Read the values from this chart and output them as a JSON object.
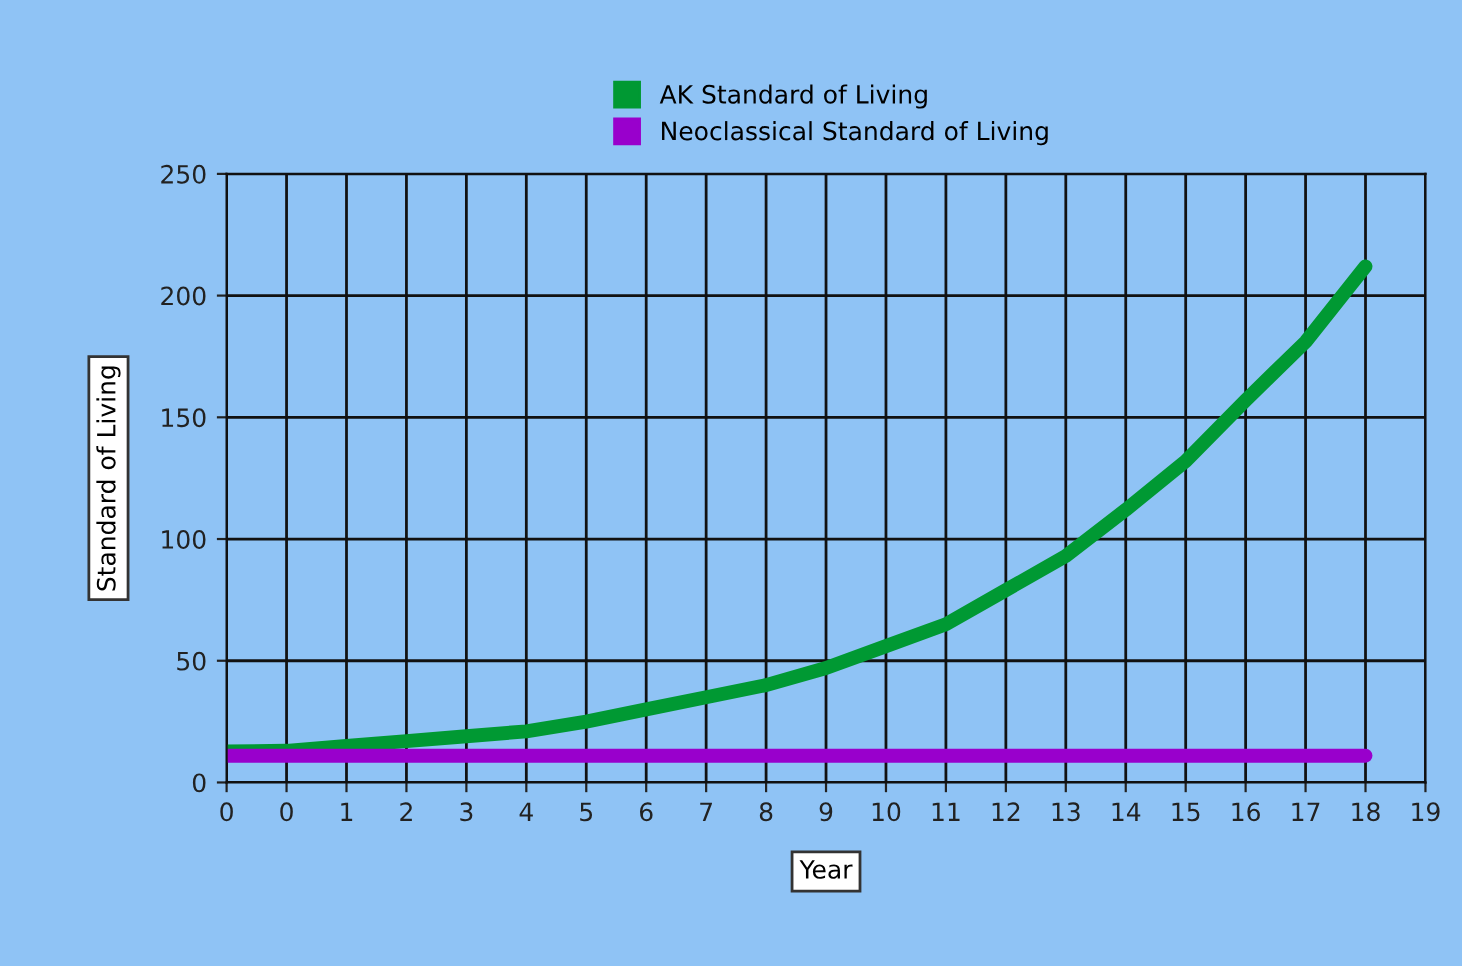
{
  "chart_data": {
    "type": "line",
    "xlabel": "Year",
    "ylabel": "Standard of Living",
    "categories": [
      "0",
      "0",
      "1",
      "2",
      "3",
      "4",
      "5",
      "6",
      "7",
      "8",
      "9",
      "10",
      "11",
      "12",
      "13",
      "14",
      "15",
      "16",
      "17",
      "18",
      "19"
    ],
    "series": [
      {
        "name": "AK Standard of Living",
        "color": "#009933",
        "values": [
          12.7,
          13,
          15,
          17,
          19,
          21,
          25,
          30,
          35,
          40,
          47,
          56,
          65,
          79,
          93,
          112,
          132,
          157,
          181,
          212,
          null
        ]
      },
      {
        "name": "Neoclassical Standard of Living",
        "color": "#9900cc",
        "values": [
          11,
          11,
          11,
          11,
          11,
          11,
          11,
          11,
          11,
          11,
          11,
          11,
          11,
          11,
          11,
          11,
          11,
          11,
          11,
          11,
          null
        ]
      }
    ],
    "ylim": [
      0,
      250
    ],
    "yticks": [
      0,
      50,
      100,
      150,
      200,
      250
    ],
    "grid": true,
    "legend": "top",
    "marker": "none",
    "line_style": "solid"
  }
}
